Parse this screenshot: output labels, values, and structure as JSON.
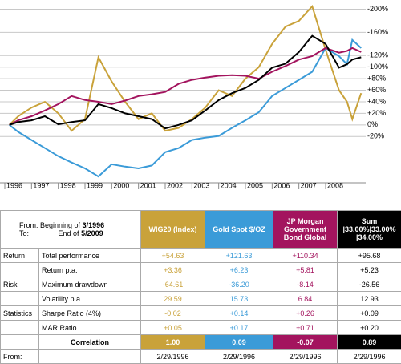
{
  "chart_data": {
    "type": "line",
    "x": [
      1996.17,
      1996.5,
      1997,
      1997.5,
      1998,
      1998.5,
      1999,
      1999.5,
      2000,
      2000.5,
      2001,
      2001.5,
      2002,
      2002.5,
      2003,
      2003.5,
      2004,
      2004.5,
      2005,
      2005.5,
      2006,
      2006.5,
      2007,
      2007.5,
      2008,
      2008.5,
      2008.8,
      2009,
      2009.33
    ],
    "series": [
      {
        "color": "#c9a23a",
        "values": [
          0,
          15,
          30,
          40,
          20,
          -10,
          10,
          117,
          75,
          40,
          10,
          20,
          -10,
          -5,
          10,
          30,
          60,
          50,
          80,
          100,
          140,
          170,
          180,
          205,
          130,
          60,
          40,
          10,
          55
        ]
      },
      {
        "color": "#3b9bd8",
        "values": [
          0,
          -12,
          -26,
          -40,
          -54,
          -65,
          -75,
          -89,
          -68,
          -72,
          -75,
          -70,
          -47,
          -40,
          -26,
          -22,
          -19,
          -5,
          8,
          22,
          50,
          64,
          78,
          92,
          133,
          119,
          105,
          147,
          133
        ]
      },
      {
        "color": "#a3145e",
        "values": [
          0,
          8,
          15,
          25,
          36,
          50,
          43,
          40,
          36,
          42,
          50,
          53,
          57,
          71,
          78,
          82,
          85,
          86,
          85,
          80,
          92,
          102,
          113,
          119,
          133,
          125,
          128,
          133,
          126
        ]
      },
      {
        "color": "#000000",
        "values": [
          0,
          5,
          8,
          15,
          1,
          5,
          8,
          36,
          29,
          20,
          15,
          10,
          -6,
          0,
          8,
          25,
          43,
          55,
          64,
          78,
          99,
          106,
          126,
          154,
          140,
          99,
          105,
          113,
          117
        ]
      }
    ],
    "xlim": [
      1996,
      2009.5
    ],
    "xticks": [
      1996,
      1997,
      1998,
      1999,
      2000,
      2001,
      2002,
      2003,
      2004,
      2005,
      2006,
      2007,
      2008
    ],
    "ylim": [
      -100,
      216
    ],
    "yticks": [
      {
        "value": 200,
        "label": "-200%"
      },
      {
        "value": 160,
        "label": "-160%"
      },
      {
        "value": 120,
        "label": "-120%"
      },
      {
        "value": 100,
        "label": "-100%"
      },
      {
        "value": 80,
        "label": "+80%"
      },
      {
        "value": 60,
        "label": "+60%"
      },
      {
        "value": 40,
        "label": "+40%"
      },
      {
        "value": 20,
        "label": "+20%"
      },
      {
        "value": 0,
        "label": "0%"
      },
      {
        "value": -20,
        "label": "-20%"
      }
    ],
    "grid": true
  },
  "table": {
    "period": {
      "from_label": "From:",
      "from_text": "Beginning of",
      "from_date": "3/1996",
      "to_label": "To:",
      "to_text": "End of",
      "to_date": "5/2009"
    },
    "columns": [
      {
        "title": "WIG20 (Index)",
        "color": "#c9a23a"
      },
      {
        "title": "Gold Spot $/OZ",
        "color": "#3b9bd8"
      },
      {
        "title": "JP Morgan Government Bond Global",
        "color": "#a3145e"
      },
      {
        "title": "Sum |33.00%|33.00% |34.00%",
        "color": "#000000"
      }
    ],
    "rows": [
      {
        "group": "Return",
        "label": "Total performance",
        "values": [
          "+54.63",
          "+121.63",
          "+110.34",
          "+95.68"
        ]
      },
      {
        "label": "Return p.a.",
        "values": [
          "+3.36",
          "+6.23",
          "+5.81",
          "+5.23"
        ]
      },
      {
        "group": "Risk",
        "label": "Maximum drawdown",
        "values": [
          "-64.61",
          "-36.20",
          "-8.14",
          "-26.56"
        ]
      },
      {
        "label": "Volatility p.a.",
        "values": [
          "29.59",
          "15.73",
          "6.84",
          "12.93"
        ]
      },
      {
        "group": "Statistics",
        "label": "Sharpe Ratio  (4%)",
        "values": [
          "-0.02",
          "+0.14",
          "+0.26",
          "+0.09"
        ]
      },
      {
        "label": "MAR Ratio",
        "values": [
          "+0.05",
          "+0.17",
          "+0.71",
          "+0.20"
        ]
      },
      {
        "label": "Correlation",
        "highlight": true,
        "values": [
          "1.00",
          "0.09",
          "-0.07",
          "0.89"
        ]
      },
      {
        "group": "From:",
        "values": [
          "2/29/1996",
          "2/29/1996",
          "2/29/1996",
          "2/29/1996"
        ]
      }
    ]
  }
}
